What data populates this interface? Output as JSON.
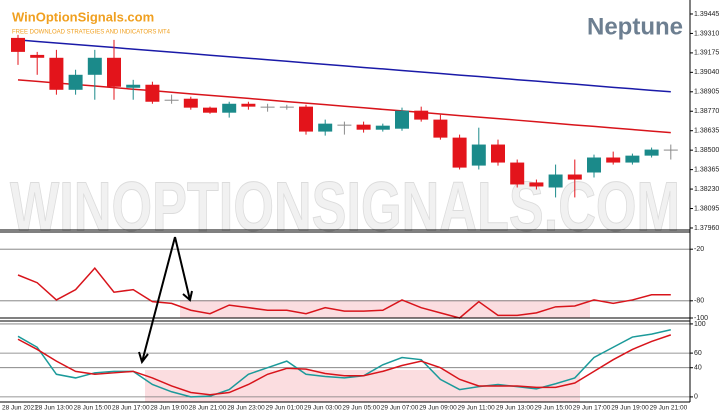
{
  "chart_data": [
    {
      "type": "candlestick",
      "annotations": [
        "WinOptionSignals.com",
        "FREE DOWNLOAD STRATEGIES AND INDICATORS MT4",
        "Neptune",
        "WINOPTIONSIGNALS.COM"
      ],
      "categories": [
        "28 Jun 2021",
        "28 Jun 13:00",
        null,
        "28 Jun 15:00",
        null,
        "28 Jun 17:00",
        null,
        "28 Jun 19:00",
        null,
        "28 Jun 21:00",
        null,
        "28 Jun 23:00",
        null,
        "29 Jun 01:00",
        null,
        "29 Jun 03:00",
        null,
        "29 Jun 05:00",
        null,
        "29 Jun 07:00",
        null,
        "29 Jun 09:00",
        null,
        "29 Jun 11:00",
        null,
        "29 Jun 13:00",
        null,
        "29 Jun 15:00",
        null,
        "29 Jun 17:00",
        null,
        "29 Jun 19:00",
        null,
        "29 Jun 21:00",
        null
      ],
      "open": [
        1.39279,
        1.39161,
        1.39141,
        1.38919,
        1.39023,
        1.39141,
        1.38933,
        1.38954,
        1.3885,
        1.38857,
        1.38795,
        1.3876,
        1.38822,
        1.38802,
        1.38802,
        1.38802,
        1.38629,
        1.38677,
        1.38677,
        1.38642,
        1.38649,
        1.38774,
        1.38712,
        1.38587,
        1.38393,
        1.38539,
        1.38414,
        1.38276,
        1.38241,
        1.38331,
        1.38345,
        1.38449,
        1.38414,
        1.38462,
        1.38504
      ],
      "high": [
        1.393,
        1.39182,
        1.39196,
        1.39058,
        1.39196,
        1.39265,
        1.38988,
        1.38975,
        1.38885,
        1.38871,
        1.38802,
        1.38836,
        1.38836,
        1.38822,
        1.38815,
        1.38815,
        1.38712,
        1.38698,
        1.38698,
        1.38684,
        1.38795,
        1.38802,
        1.38746,
        1.38608,
        1.38656,
        1.38573,
        1.38435,
        1.38296,
        1.384,
        1.38435,
        1.38469,
        1.3849,
        1.38476,
        1.38518,
        1.38539
      ],
      "low": [
        1.39092,
        1.39023,
        1.38885,
        1.38885,
        1.3885,
        1.3885,
        1.3885,
        1.38822,
        1.38822,
        1.38781,
        1.38753,
        1.38726,
        1.38781,
        1.38767,
        1.38781,
        1.38608,
        1.38601,
        1.38608,
        1.38622,
        1.38629,
        1.38635,
        1.38698,
        1.38573,
        1.38366,
        1.38366,
        1.38393,
        1.38241,
        1.38227,
        1.38172,
        1.38172,
        1.3831,
        1.384,
        1.384,
        1.38449,
        1.38435
      ],
      "close": [
        1.39182,
        1.39141,
        1.38919,
        1.39023,
        1.39141,
        1.3894,
        1.38954,
        1.38836,
        1.3885,
        1.38795,
        1.3876,
        1.38822,
        1.38802,
        1.38802,
        1.38802,
        1.38629,
        1.38684,
        1.38677,
        1.38642,
        1.3867,
        1.38774,
        1.38712,
        1.38587,
        1.38379,
        1.38539,
        1.38414,
        1.38262,
        1.38248,
        1.38331,
        1.38296,
        1.38449,
        1.38414,
        1.38462,
        1.38504,
        1.38504
      ],
      "up_color": "#1b8a8a",
      "down_color": "#e3141b",
      "doji_color": "#8a8a8a",
      "lines": [
        {
          "color": "#1a1aa8",
          "values": [
            1.39265,
            1.39254,
            1.39244,
            1.39233,
            1.39223,
            1.39212,
            1.39201,
            1.39191,
            1.3918,
            1.3917,
            1.39159,
            1.39148,
            1.39138,
            1.39127,
            1.39117,
            1.39106,
            1.39095,
            1.39085,
            1.39074,
            1.39064,
            1.39053,
            1.39042,
            1.39032,
            1.39021,
            1.39011,
            1.39,
            1.38989,
            1.38979,
            1.38968,
            1.38958,
            1.38947,
            1.38936,
            1.38926,
            1.38915,
            1.38905
          ]
        },
        {
          "color": "#d8141b",
          "values": [
            1.38988,
            1.38977,
            1.38966,
            1.38956,
            1.38945,
            1.38934,
            1.38923,
            1.38913,
            1.38902,
            1.38891,
            1.3888,
            1.3887,
            1.38859,
            1.38848,
            1.38837,
            1.38826,
            1.38816,
            1.38805,
            1.38794,
            1.38783,
            1.38773,
            1.38762,
            1.38751,
            1.3874,
            1.38729,
            1.38719,
            1.38708,
            1.38697,
            1.38686,
            1.38675,
            1.38665,
            1.38654,
            1.38643,
            1.38632,
            1.38622
          ]
        }
      ],
      "ylim": [
        1.37946,
        1.39542
      ],
      "yticks": [
        1.39445,
        {
          "value": 1.3931,
          "label": "1.39310"
        },
        1.39175,
        {
          "value": 1.3904,
          "label": "1.39040"
        },
        1.38905,
        {
          "value": 1.3877,
          "label": "1.38770"
        },
        1.38635,
        {
          "value": 1.385,
          "label": "1.38500"
        },
        1.38365,
        {
          "value": 1.3823,
          "label": "1.38230"
        },
        1.38095,
        {
          "value": 1.3796,
          "label": "1.37960"
        }
      ]
    },
    {
      "type": "line",
      "series": [
        {
          "color": "#d8141b",
          "values": [
            -50,
            -59,
            -79,
            -67,
            -42,
            -70,
            -67,
            -81,
            -83,
            -91,
            -95,
            -85,
            -88,
            -91,
            -91,
            -95,
            -88,
            -92,
            -92,
            -91,
            -79,
            -88,
            -94,
            -100,
            -81,
            -97,
            -97,
            -94,
            -87,
            -86,
            -79,
            -83,
            -79,
            -73,
            -73
          ]
        }
      ],
      "ylim": [
        -100,
        0
      ],
      "yticks": [
        -20,
        -80,
        -100
      ]
    },
    {
      "type": "line",
      "series": [
        {
          "color": "#1b9a9a",
          "values": [
            83,
            68,
            31,
            26,
            33,
            35,
            35,
            17,
            7,
            0,
            1,
            10,
            31,
            40,
            49,
            31,
            28,
            26,
            29,
            44,
            54,
            51,
            24,
            10,
            14,
            17,
            14,
            11,
            18,
            26,
            54,
            68,
            82,
            86,
            92
          ]
        },
        {
          "color": "#d8141b",
          "values": [
            79,
            65,
            49,
            35,
            31,
            33,
            35,
            26,
            15,
            6,
            3,
            6,
            17,
            31,
            39,
            38,
            32,
            29,
            29,
            35,
            43,
            49,
            40,
            24,
            15,
            15,
            15,
            13,
            13,
            19,
            35,
            51,
            65,
            76,
            85
          ]
        }
      ],
      "ylim": [
        -7,
        104
      ],
      "yticks": [
        100,
        60,
        40,
        0
      ]
    }
  ]
}
